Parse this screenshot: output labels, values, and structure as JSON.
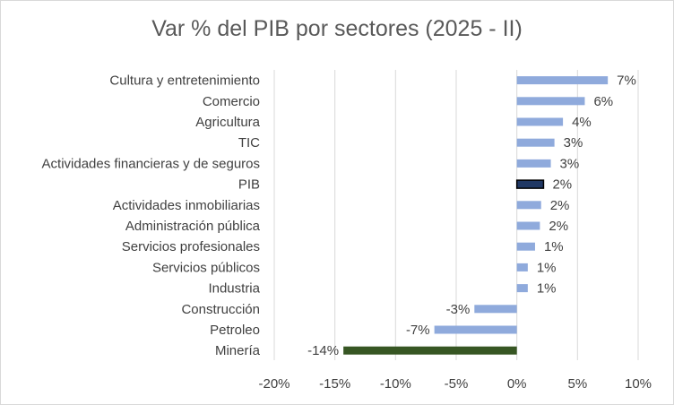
{
  "chart_data": {
    "type": "bar",
    "orientation": "horizontal",
    "title": "Var % del PIB por sectores (2025 - II)",
    "categories": [
      "Cultura y entretenimiento",
      "Comercio",
      "Agricultura",
      "TIC",
      "Actividades financieras y de seguros",
      "PIB",
      "Actividades inmobiliarias",
      "Administración pública",
      "Servicios profesionales",
      "Servicios públicos",
      "Industria",
      "Construcción",
      "Petroleo",
      "Minería"
    ],
    "values": [
      7.5,
      5.6,
      3.8,
      3.1,
      2.8,
      2.2,
      2.0,
      1.9,
      1.5,
      0.9,
      0.9,
      -3.5,
      -6.8,
      -14.3
    ],
    "data_labels": [
      "7%",
      "6%",
      "4%",
      "3%",
      "3%",
      "2%",
      "2%",
      "2%",
      "1%",
      "1%",
      "1%",
      "-3%",
      "-7%",
      "-14%"
    ],
    "xlim": [
      -20,
      10
    ],
    "x_ticks": [
      -20,
      -15,
      -10,
      -5,
      0,
      5,
      10
    ],
    "x_tick_labels": [
      "-20%",
      "-15%",
      "-10%",
      "-5%",
      "0%",
      "5%",
      "10%"
    ],
    "grid": "vertical",
    "legend": "none",
    "colors": {
      "default": "#8faadc",
      "highlight_pib": "#203864",
      "highlight_pib_border": "#000000",
      "highlight_mineria": "#375623",
      "gridline": "#d9d9d9",
      "text": "#404040",
      "title": "#595959"
    }
  }
}
